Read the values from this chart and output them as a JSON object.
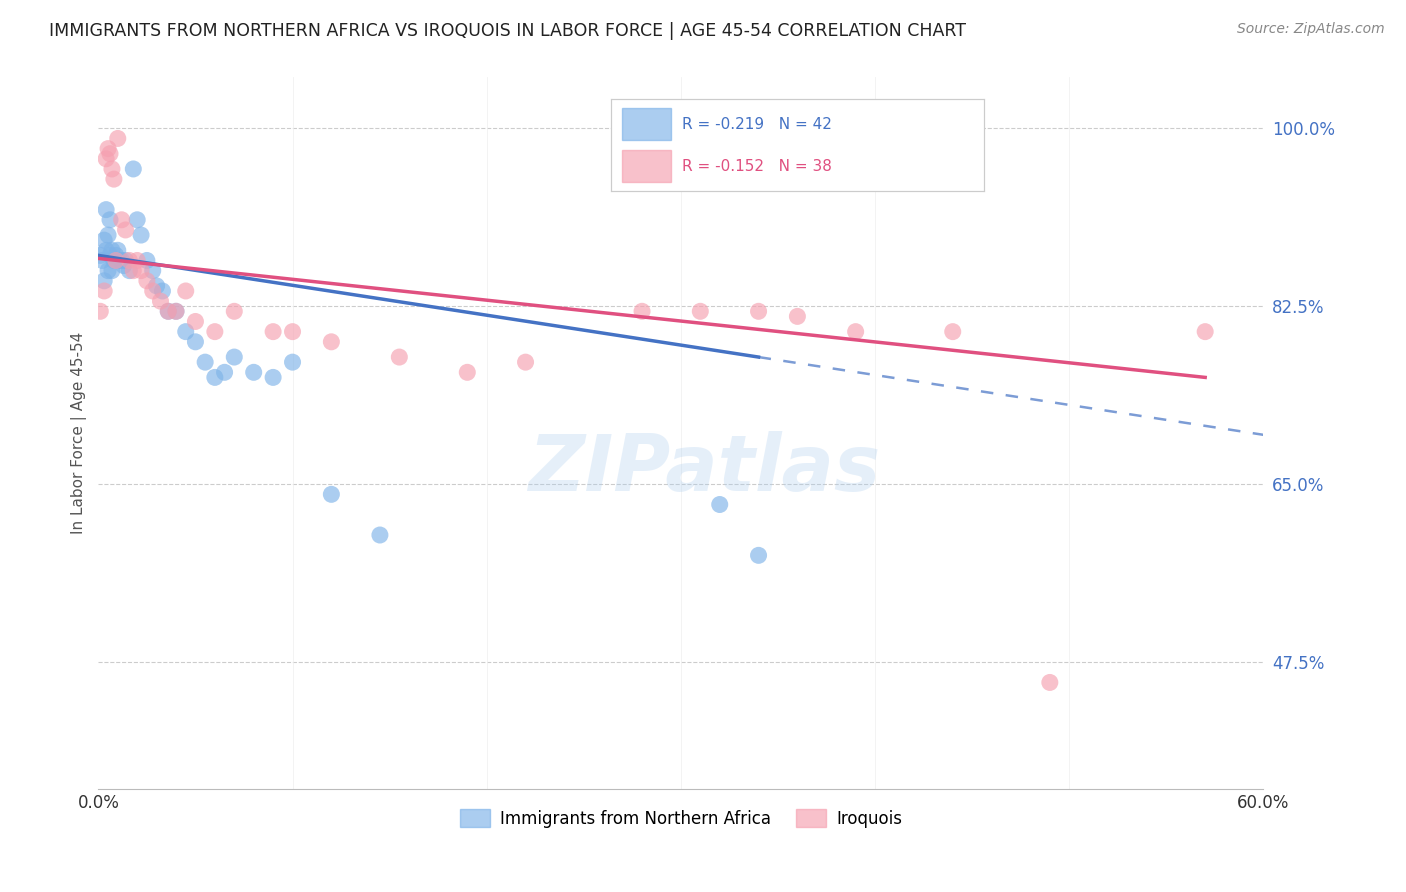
{
  "title": "IMMIGRANTS FROM NORTHERN AFRICA VS IROQUOIS IN LABOR FORCE | AGE 45-54 CORRELATION CHART",
  "source": "Source: ZipAtlas.com",
  "ylabel": "In Labor Force | Age 45-54",
  "xlim": [
    0.0,
    0.6
  ],
  "ylim": [
    0.35,
    1.05
  ],
  "xticks": [
    0.0,
    0.1,
    0.2,
    0.3,
    0.4,
    0.5,
    0.6
  ],
  "xticklabels": [
    "0.0%",
    "",
    "",
    "",
    "",
    "",
    "60.0%"
  ],
  "ytick_positions": [
    0.475,
    0.65,
    0.825,
    1.0
  ],
  "ytick_labels": [
    "47.5%",
    "65.0%",
    "82.5%",
    "100.0%"
  ],
  "blue_color": "#7EB3E8",
  "pink_color": "#F5A0B0",
  "blue_line_color": "#4472C4",
  "pink_line_color": "#E05080",
  "legend_label_blue": "Immigrants from Northern Africa",
  "legend_label_pink": "Iroquois",
  "watermark": "ZIPatlas",
  "blue_scatter_x": [
    0.001,
    0.002,
    0.003,
    0.003,
    0.004,
    0.004,
    0.005,
    0.005,
    0.006,
    0.006,
    0.007,
    0.007,
    0.008,
    0.009,
    0.01,
    0.011,
    0.012,
    0.013,
    0.014,
    0.016,
    0.018,
    0.02,
    0.022,
    0.025,
    0.028,
    0.03,
    0.033,
    0.036,
    0.04,
    0.045,
    0.05,
    0.055,
    0.06,
    0.065,
    0.07,
    0.08,
    0.09,
    0.1,
    0.12,
    0.145,
    0.32,
    0.34
  ],
  "blue_scatter_y": [
    0.875,
    0.87,
    0.89,
    0.85,
    0.92,
    0.88,
    0.895,
    0.86,
    0.91,
    0.875,
    0.88,
    0.86,
    0.87,
    0.875,
    0.88,
    0.87,
    0.87,
    0.865,
    0.87,
    0.86,
    0.96,
    0.91,
    0.895,
    0.87,
    0.86,
    0.845,
    0.84,
    0.82,
    0.82,
    0.8,
    0.79,
    0.77,
    0.755,
    0.76,
    0.775,
    0.76,
    0.755,
    0.77,
    0.64,
    0.6,
    0.63,
    0.58
  ],
  "pink_scatter_x": [
    0.001,
    0.003,
    0.004,
    0.005,
    0.006,
    0.007,
    0.008,
    0.009,
    0.01,
    0.012,
    0.014,
    0.016,
    0.018,
    0.02,
    0.022,
    0.025,
    0.028,
    0.032,
    0.036,
    0.04,
    0.045,
    0.05,
    0.06,
    0.07,
    0.09,
    0.1,
    0.12,
    0.155,
    0.19,
    0.22,
    0.28,
    0.31,
    0.34,
    0.36,
    0.39,
    0.44,
    0.49,
    0.57
  ],
  "pink_scatter_y": [
    0.82,
    0.84,
    0.97,
    0.98,
    0.975,
    0.96,
    0.95,
    0.87,
    0.99,
    0.91,
    0.9,
    0.87,
    0.86,
    0.87,
    0.86,
    0.85,
    0.84,
    0.83,
    0.82,
    0.82,
    0.84,
    0.81,
    0.8,
    0.82,
    0.8,
    0.8,
    0.79,
    0.775,
    0.76,
    0.77,
    0.82,
    0.82,
    0.82,
    0.815,
    0.8,
    0.8,
    0.455,
    0.8
  ],
  "blue_line_x0": 0.0,
  "blue_line_x1": 0.34,
  "blue_line_xext": 0.6,
  "blue_line_y0": 0.875,
  "blue_line_y1": 0.775,
  "pink_line_x0": 0.0,
  "pink_line_x1": 0.57,
  "pink_line_y0": 0.872,
  "pink_line_y1": 0.755
}
